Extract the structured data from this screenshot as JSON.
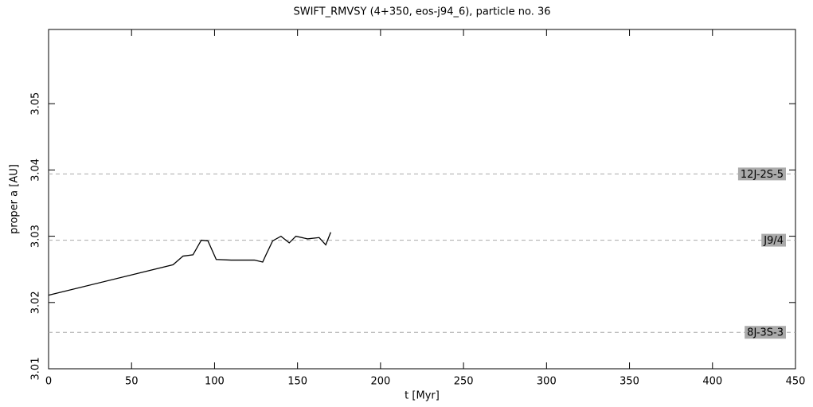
{
  "chart_data": {
    "type": "line",
    "title": "SWIFT_RMVSY (4+350, eos-j94_6), particle no. 36",
    "x_label": "t [Myr]",
    "y_label": "proper a [AU]",
    "xlim": [
      0,
      450
    ],
    "ylim": [
      3.01,
      3.0612
    ],
    "xticks": [
      0,
      50,
      100,
      150,
      200,
      250,
      300,
      350,
      400,
      450
    ],
    "yticks": [
      3.01,
      3.02,
      3.03,
      3.04,
      3.05
    ],
    "series": [
      {
        "color": "#000000",
        "x": [
          0,
          75,
          81,
          87,
          92,
          96,
          101,
          110,
          124,
          129,
          131,
          135,
          140,
          145,
          149,
          156,
          163,
          167,
          170
        ],
        "values": [
          3.0211,
          3.0257,
          3.027,
          3.0272,
          3.0294,
          3.0293,
          3.0265,
          3.0264,
          3.0264,
          3.0261,
          3.0272,
          3.0293,
          3.03,
          3.029,
          3.03,
          3.0296,
          3.0298,
          3.0287,
          3.0306
        ]
      }
    ],
    "resonances": [
      {
        "label": "12J-2S-5",
        "value": 3.0394
      },
      {
        "label": "J9/4",
        "value": 3.0294
      },
      {
        "label": "8J-3S-3",
        "value": 3.0155
      }
    ]
  }
}
